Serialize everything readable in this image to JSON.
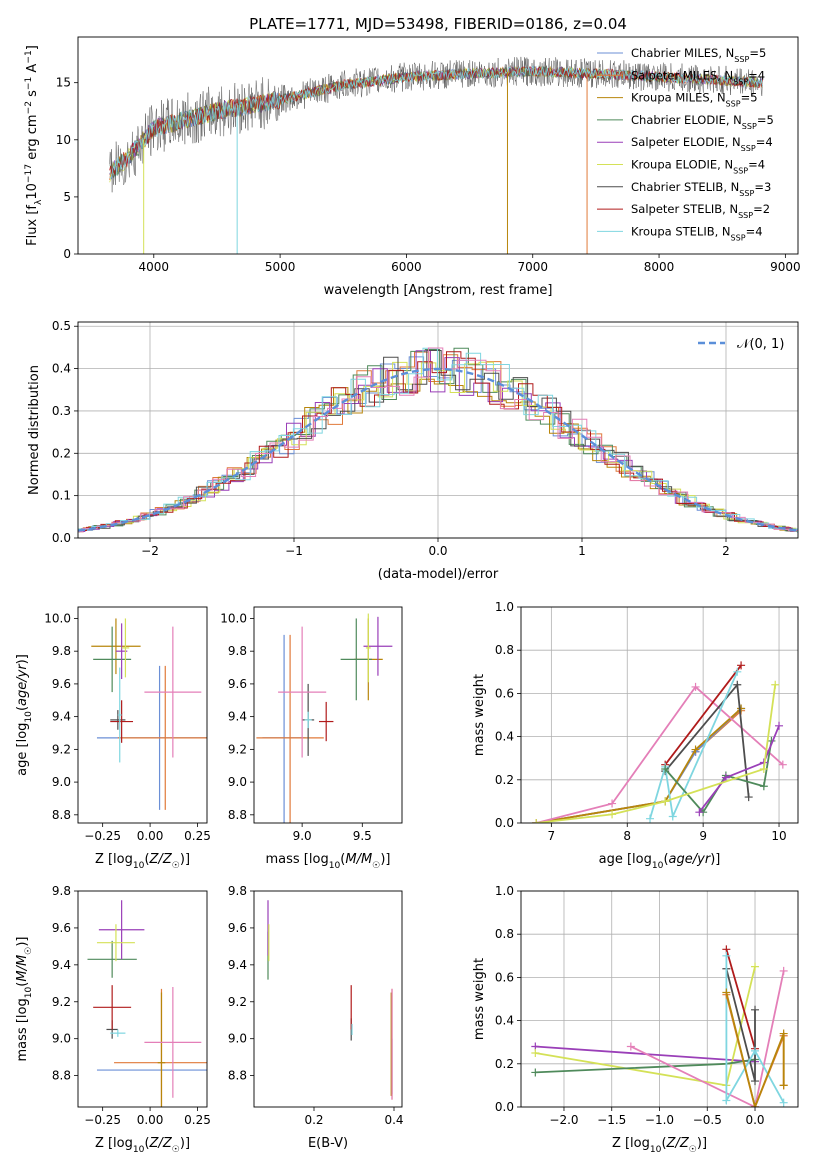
{
  "title": "PLATE=1771, MJD=53498, FIBERID=0186, z=0.04",
  "colors": {
    "Chabrier MILES": "#6b8fd6",
    "Salpeter MILES": "#e07a3a",
    "Kroupa MILES": "#b8860b",
    "Chabrier ELODIE": "#4f8a5b",
    "Salpeter ELODIE": "#9a3fb8",
    "Kroupa ELODIE": "#d4e157",
    "Chabrier STELIB": "#4d4d4d",
    "Salpeter STELIB": "#b01b1b",
    "Kroupa STELIB": "#7fd6e0",
    "pink": "#e47fb8",
    "gaussian": "#5b8fd9"
  },
  "legend1": [
    {
      "name": "Chabrier MILES",
      "n": "5"
    },
    {
      "name": "Salpeter MILES",
      "n": "4"
    },
    {
      "name": "Kroupa MILES",
      "n": "5"
    },
    {
      "name": "Chabrier ELODIE",
      "n": "5"
    },
    {
      "name": "Salpeter ELODIE",
      "n": "4"
    },
    {
      "name": "Kroupa ELODIE",
      "n": "4"
    },
    {
      "name": "Chabrier STELIB",
      "n": "3"
    },
    {
      "name": "Salpeter STELIB",
      "n": "2"
    },
    {
      "name": "Kroupa STELIB",
      "n": "4"
    }
  ],
  "legend2": "𝒩(0, 1)",
  "chart_data": [
    {
      "type": "line",
      "panel": "spectrum",
      "xlabel": "wavelength [Angstrom, rest frame]",
      "ylabel": "Flux [f_λ10^-17 erg cm^-2 s^-1 A^-1]",
      "xlim": [
        3400,
        9100
      ],
      "ylim": [
        0,
        19
      ],
      "xticks": [
        4000,
        5000,
        6000,
        7000,
        8000,
        9000
      ],
      "yticks": [
        0,
        5,
        10,
        15
      ],
      "continuum": [
        [
          3650,
          7.0
        ],
        [
          3800,
          8.5
        ],
        [
          4000,
          11.0
        ],
        [
          4500,
          12.5
        ],
        [
          5000,
          13.5
        ],
        [
          5500,
          14.8
        ],
        [
          6000,
          15.5
        ],
        [
          6500,
          15.8
        ],
        [
          7000,
          16.0
        ],
        [
          7500,
          15.8
        ],
        [
          8000,
          15.5
        ],
        [
          8500,
          15.2
        ],
        [
          8800,
          15.0
        ]
      ]
    },
    {
      "type": "line",
      "panel": "residual histogram",
      "xlabel": "(data-model)/error",
      "ylabel": "Normed distribution",
      "xlim": [
        -2.5,
        2.5
      ],
      "ylim": [
        0,
        0.51
      ],
      "xticks": [
        -2,
        -1,
        0,
        1,
        2
      ],
      "yticks": [
        0.0,
        0.1,
        0.2,
        0.3,
        0.4,
        0.5
      ],
      "grid": true,
      "legend": "top-right"
    },
    {
      "type": "scatter",
      "panel": "age vs Z",
      "xlabel": "Z [log10(Z/Z☉)]",
      "ylabel": "age [log10(age/yr)]",
      "xlim": [
        -0.38,
        0.3
      ],
      "ylim": [
        8.75,
        10.07
      ],
      "xticks": [
        -0.25,
        0.0,
        0.25
      ],
      "yticks": [
        8.8,
        9.0,
        9.2,
        9.4,
        9.6,
        9.8,
        10.0
      ],
      "series": [
        {
          "color": "Chabrier MILES",
          "x": 0.05,
          "y": 9.27,
          "xerr": 0.33,
          "yerr": 0.44
        },
        {
          "color": "Salpeter MILES",
          "x": 0.08,
          "y": 9.27,
          "xerr": 0.25,
          "yerr": 0.44
        },
        {
          "color": "Kroupa MILES",
          "x": -0.18,
          "y": 9.83,
          "xerr": 0.13,
          "yerr": 0.17
        },
        {
          "color": "Chabrier ELODIE",
          "x": -0.2,
          "y": 9.75,
          "xerr": 0.1,
          "yerr": 0.2
        },
        {
          "color": "Salpeter ELODIE",
          "x": -0.15,
          "y": 9.8,
          "xerr": 0.03,
          "yerr": 0.17
        },
        {
          "color": "Kroupa ELODIE",
          "x": -0.13,
          "y": 9.82,
          "xerr": 0.02,
          "yerr": 0.18
        },
        {
          "color": "Chabrier STELIB",
          "x": -0.17,
          "y": 9.38,
          "xerr": 0.04,
          "yerr": 0.06
        },
        {
          "color": "Salpeter STELIB",
          "x": -0.15,
          "y": 9.37,
          "xerr": 0.06,
          "yerr": 0.13
        },
        {
          "color": "Kroupa STELIB",
          "x": -0.16,
          "y": 9.41,
          "xerr": 0.01,
          "yerr": 0.29
        },
        {
          "color": "pink",
          "x": 0.12,
          "y": 9.55,
          "xerr": 0.15,
          "yerr": 0.4
        }
      ]
    },
    {
      "type": "scatter",
      "panel": "age vs mass",
      "xlabel": "mass [log10(M/M☉)]",
      "ylim": [
        8.75,
        10.07
      ],
      "xlim": [
        8.6,
        9.83
      ],
      "xticks": [
        9.0,
        9.5
      ],
      "yticks": [
        8.8,
        9.0,
        9.2,
        9.4,
        9.6,
        9.8,
        10.0
      ],
      "series": [
        {
          "color": "Chabrier MILES",
          "x": 8.85,
          "y": 9.27,
          "xerr": 0.18,
          "yerr": 0.63
        },
        {
          "color": "Salpeter MILES",
          "x": 8.9,
          "y": 9.27,
          "xerr": 0.28,
          "yerr": 0.63
        },
        {
          "color": "Kroupa MILES",
          "x": 9.55,
          "y": 9.75,
          "xerr": 0.12,
          "yerr": 0.25
        },
        {
          "color": "Chabrier ELODIE",
          "x": 9.45,
          "y": 9.75,
          "xerr": 0.13,
          "yerr": 0.25
        },
        {
          "color": "Salpeter ELODIE",
          "x": 9.63,
          "y": 9.83,
          "xerr": 0.12,
          "yerr": 0.18
        },
        {
          "color": "Kroupa ELODIE",
          "x": 9.55,
          "y": 9.82,
          "xerr": 0.02,
          "yerr": 0.21
        },
        {
          "color": "Chabrier STELIB",
          "x": 9.05,
          "y": 9.38,
          "xerr": 0.05,
          "yerr": 0.22
        },
        {
          "color": "Salpeter STELIB",
          "x": 9.2,
          "y": 9.37,
          "xerr": 0.06,
          "yerr": 0.12
        },
        {
          "color": "Kroupa STELIB",
          "x": 9.05,
          "y": 9.38,
          "xerr": 0.03,
          "yerr": 0.05
        },
        {
          "color": "pink",
          "x": 9.0,
          "y": 9.55,
          "xerr": 0.2,
          "yerr": 0.4
        }
      ]
    },
    {
      "type": "line",
      "panel": "mass weight vs age",
      "xlabel": "age [log10(age/yr)]",
      "ylabel": "mass weight",
      "xlim": [
        6.6,
        10.25
      ],
      "ylim": [
        0,
        1.0
      ],
      "xticks": [
        7,
        8,
        9,
        10
      ],
      "yticks": [
        0.0,
        0.2,
        0.4,
        0.6,
        0.8,
        1.0
      ],
      "grid": true,
      "series": [
        {
          "color": "Salpeter MILES",
          "x": [
            6.8,
            8.5,
            8.9,
            9.5
          ],
          "y": [
            0.0,
            0.1,
            0.33,
            0.52
          ]
        },
        {
          "color": "Chabrier MILES",
          "x": [
            6.8,
            8.5,
            8.9,
            9.5
          ],
          "y": [
            0.0,
            0.1,
            0.33,
            0.53
          ]
        },
        {
          "color": "Kroupa MILES",
          "x": [
            6.8,
            8.5,
            8.9,
            9.5
          ],
          "y": [
            0.0,
            0.1,
            0.34,
            0.53
          ]
        },
        {
          "color": "pink",
          "x": [
            6.8,
            7.8,
            8.9,
            10.05
          ],
          "y": [
            0.0,
            0.09,
            0.63,
            0.27
          ]
        },
        {
          "color": "Salpeter STELIB",
          "x": [
            8.5,
            9.5
          ],
          "y": [
            0.27,
            0.73
          ]
        },
        {
          "color": "Chabrier STELIB",
          "x": [
            8.5,
            9.45,
            9.6
          ],
          "y": [
            0.24,
            0.64,
            0.12
          ]
        },
        {
          "color": "Kroupa STELIB",
          "x": [
            8.3,
            8.5,
            8.6,
            9.45
          ],
          "y": [
            0.02,
            0.26,
            0.03,
            0.7
          ]
        },
        {
          "color": "Chabrier ELODIE",
          "x": [
            8.5,
            9.0,
            9.3,
            9.8,
            9.9
          ],
          "y": [
            0.25,
            0.05,
            0.22,
            0.17,
            0.38
          ]
        },
        {
          "color": "Salpeter ELODIE",
          "x": [
            8.95,
            9.3,
            9.8,
            10.0
          ],
          "y": [
            0.05,
            0.21,
            0.28,
            0.45
          ]
        },
        {
          "color": "Kroupa ELODIE",
          "x": [
            6.8,
            7.8,
            8.5,
            9.8,
            9.95
          ],
          "y": [
            0.0,
            0.04,
            0.1,
            0.25,
            0.64
          ]
        }
      ]
    },
    {
      "type": "scatter",
      "panel": "mass vs Z",
      "xlabel": "Z [log10(Z/Z☉)]",
      "ylabel": "mass [log10(M/M☉)]",
      "xlim": [
        -0.38,
        0.3
      ],
      "ylim": [
        8.63,
        9.8
      ],
      "xticks": [
        -0.25,
        0.0,
        0.25
      ],
      "yticks": [
        8.8,
        9.0,
        9.2,
        9.4,
        9.6,
        9.8
      ],
      "series": [
        {
          "color": "Chabrier MILES",
          "x": 0.05,
          "y": 8.83,
          "xerr": 0.33,
          "yerr": 0.0
        },
        {
          "color": "Salpeter MILES",
          "x": 0.06,
          "y": 8.87,
          "xerr": 0.25,
          "yerr": 0.4
        },
        {
          "color": "Kroupa MILES",
          "x": 0.06,
          "y": 8.87,
          "xerr": 0.02,
          "yerr": 0.38
        },
        {
          "color": "Chabrier ELODIE",
          "x": -0.2,
          "y": 9.43,
          "xerr": 0.13,
          "yerr": 0.1
        },
        {
          "color": "Salpeter ELODIE",
          "x": -0.15,
          "y": 9.59,
          "xerr": 0.12,
          "yerr": 0.16
        },
        {
          "color": "Kroupa ELODIE",
          "x": -0.18,
          "y": 9.52,
          "xerr": 0.1,
          "yerr": 0.1
        },
        {
          "color": "Chabrier STELIB",
          "x": -0.2,
          "y": 9.05,
          "xerr": 0.03,
          "yerr": 0.05
        },
        {
          "color": "Salpeter STELIB",
          "x": -0.2,
          "y": 9.17,
          "xerr": 0.1,
          "yerr": 0.12
        },
        {
          "color": "Kroupa STELIB",
          "x": -0.17,
          "y": 9.03,
          "xerr": 0.04,
          "yerr": 0.02
        },
        {
          "color": "pink",
          "x": 0.12,
          "y": 8.98,
          "xerr": 0.15,
          "yerr": 0.3
        }
      ]
    },
    {
      "type": "scatter",
      "panel": "mass vs E(B-V)",
      "xlabel": "E(B-V)",
      "xlim": [
        0.05,
        0.42
      ],
      "ylim": [
        8.63,
        9.8
      ],
      "xticks": [
        0.2,
        0.4
      ],
      "yticks": [
        8.8,
        9.0,
        9.2,
        9.4,
        9.6,
        9.8
      ],
      "series": [
        {
          "color": "Chabrier MILES",
          "x": 0.395,
          "y": 8.85,
          "yerr": 0.15
        },
        {
          "color": "Salpeter MILES",
          "x": 0.395,
          "y": 8.97,
          "yerr": 0.3
        },
        {
          "color": "Kroupa MILES",
          "x": 0.393,
          "y": 8.97,
          "yerr": 0.28
        },
        {
          "color": "Chabrier ELODIE",
          "x": 0.085,
          "y": 9.45,
          "yerr": 0.13
        },
        {
          "color": "Salpeter ELODIE",
          "x": 0.085,
          "y": 9.6,
          "yerr": 0.15
        },
        {
          "color": "Kroupa ELODIE",
          "x": 0.087,
          "y": 9.52,
          "yerr": 0.1
        },
        {
          "color": "Chabrier STELIB",
          "x": 0.293,
          "y": 9.05,
          "yerr": 0.06
        },
        {
          "color": "Salpeter STELIB",
          "x": 0.293,
          "y": 9.17,
          "yerr": 0.12
        },
        {
          "color": "Kroupa STELIB",
          "x": 0.295,
          "y": 9.05,
          "yerr": 0.03
        },
        {
          "color": "pink",
          "x": 0.395,
          "y": 8.97,
          "yerr": 0.3
        }
      ]
    },
    {
      "type": "line",
      "panel": "mass weight vs Z",
      "xlabel": "Z [log10(Z/Z☉)]",
      "ylabel": "mass weight",
      "xlim": [
        -2.45,
        0.45
      ],
      "ylim": [
        0,
        1.0
      ],
      "xticks": [
        -2.0,
        -1.5,
        -1.0,
        -0.5,
        0.0
      ],
      "yticks": [
        0.0,
        0.2,
        0.4,
        0.6,
        0.8,
        1.0
      ],
      "grid": true,
      "series": [
        {
          "color": "Salpeter ELODIE",
          "x": [
            -2.3,
            0.0
          ],
          "y": [
            0.28,
            0.21
          ]
        },
        {
          "color": "Kroupa ELODIE",
          "x": [
            -2.3,
            -0.3,
            0.0
          ],
          "y": [
            0.25,
            0.1,
            0.65
          ]
        },
        {
          "color": "Chabrier ELODIE",
          "x": [
            -2.3,
            -0.3,
            0.0
          ],
          "y": [
            0.16,
            0.2,
            0.22
          ]
        },
        {
          "color": "pink",
          "x": [
            -1.3,
            0.0,
            0.3
          ],
          "y": [
            0.28,
            0.0,
            0.63
          ]
        },
        {
          "color": "Salpeter STELIB",
          "x": [
            -0.3,
            0.0
          ],
          "y": [
            0.73,
            0.27
          ]
        },
        {
          "color": "Chabrier STELIB",
          "x": [
            -0.3,
            0.0,
            0.0
          ],
          "y": [
            0.64,
            0.12,
            0.45
          ]
        },
        {
          "color": "Kroupa STELIB",
          "x": [
            -0.3,
            -0.3,
            0.0,
            0.3
          ],
          "y": [
            0.7,
            0.03,
            0.26,
            0.02
          ]
        },
        {
          "color": "Salpeter MILES",
          "x": [
            -0.3,
            0.0,
            0.3,
            0.3
          ],
          "y": [
            0.52,
            0.0,
            0.33,
            0.1
          ]
        },
        {
          "color": "Kroupa MILES",
          "x": [
            -0.3,
            0.0,
            0.3,
            0.3
          ],
          "y": [
            0.53,
            0.0,
            0.34,
            0.1
          ]
        }
      ]
    }
  ]
}
